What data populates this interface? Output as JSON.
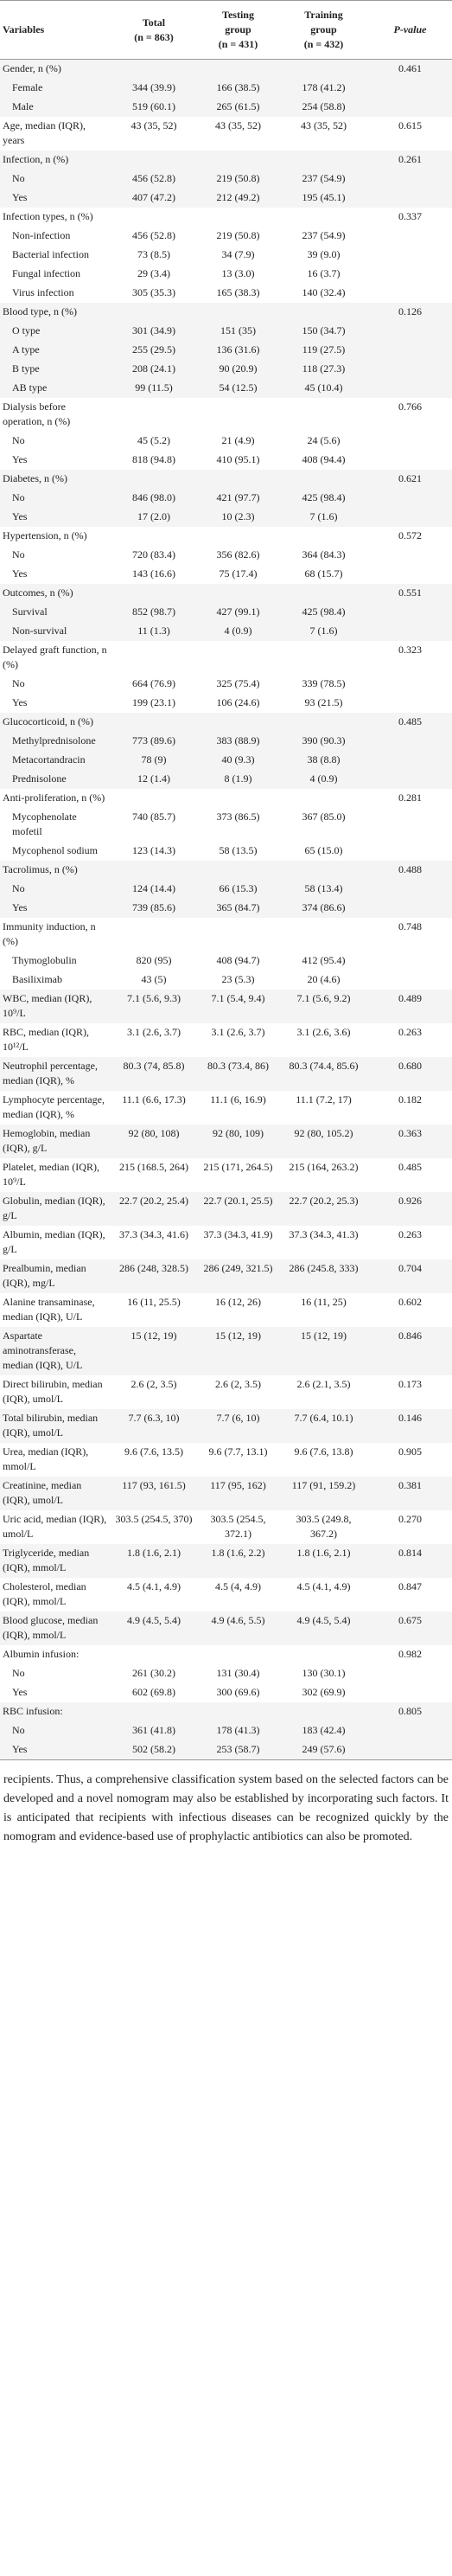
{
  "table": {
    "headers": [
      [
        "Variables"
      ],
      [
        "Total",
        "(n = 863)"
      ],
      [
        "Testing",
        "group",
        "(n = 431)"
      ],
      [
        "Training",
        "group",
        "(n = 432)"
      ],
      [
        "P-value"
      ]
    ],
    "rows": [
      [
        "Gender, n (%)",
        null,
        null,
        null,
        "0.461"
      ],
      [
        "Female",
        "344 (39.9)",
        "166 (38.5)",
        "178 (41.2)",
        null
      ],
      [
        "Male",
        "519 (60.1)",
        "265 (61.5)",
        "254 (58.8)",
        null
      ],
      [
        "Age, median (IQR), years",
        "43 (35, 52)",
        "43 (35, 52)",
        "43 (35, 52)",
        "0.615"
      ],
      [
        "Infection, n (%)",
        null,
        null,
        null,
        "0.261"
      ],
      [
        "No",
        "456 (52.8)",
        "219 (50.8)",
        "237 (54.9)",
        null
      ],
      [
        "Yes",
        "407 (47.2)",
        "212 (49.2)",
        "195 (45.1)",
        null
      ],
      [
        "Infection types, n (%)",
        null,
        null,
        null,
        "0.337"
      ],
      [
        "Non-infection",
        "456 (52.8)",
        "219 (50.8)",
        "237 (54.9)",
        null
      ],
      [
        "Bacterial infection",
        "73 (8.5)",
        "34 (7.9)",
        "39 (9.0)",
        null
      ],
      [
        "Fungal infection",
        "29 (3.4)",
        "13 (3.0)",
        "16 (3.7)",
        null
      ],
      [
        "Virus infection",
        "305 (35.3)",
        "165 (38.3)",
        "140 (32.4)",
        null
      ],
      [
        "Blood type, n (%)",
        null,
        null,
        null,
        "0.126"
      ],
      [
        "O type",
        "301 (34.9)",
        "151 (35)",
        "150 (34.7)",
        null
      ],
      [
        "A type",
        "255 (29.5)",
        "136 (31.6)",
        "119 (27.5)",
        null
      ],
      [
        "B type",
        "208 (24.1)",
        "90 (20.9)",
        "118 (27.3)",
        null
      ],
      [
        "AB type",
        "99 (11.5)",
        "54 (12.5)",
        "45 (10.4)",
        null
      ],
      [
        "Dialysis before operation, n (%)",
        null,
        null,
        null,
        "0.766"
      ],
      [
        "No",
        "45 (5.2)",
        "21 (4.9)",
        "24 (5.6)",
        null
      ],
      [
        "Yes",
        "818 (94.8)",
        "410 (95.1)",
        "408 (94.4)",
        null
      ],
      [
        "Diabetes, n (%)",
        null,
        null,
        null,
        "0.621"
      ],
      [
        "No",
        "846 (98.0)",
        "421 (97.7)",
        "425 (98.4)",
        null
      ],
      [
        "Yes",
        "17 (2.0)",
        "10 (2.3)",
        "7 (1.6)",
        null
      ],
      [
        "Hypertension, n (%)",
        null,
        null,
        null,
        "0.572"
      ],
      [
        "No",
        "720 (83.4)",
        "356 (82.6)",
        "364 (84.3)",
        null
      ],
      [
        "Yes",
        "143 (16.6)",
        "75 (17.4)",
        "68 (15.7)",
        null
      ],
      [
        "Outcomes, n (%)",
        null,
        null,
        null,
        "0.551"
      ],
      [
        "Survival",
        "852 (98.7)",
        "427 (99.1)",
        "425 (98.4)",
        null
      ],
      [
        "Non-survival",
        "11 (1.3)",
        "4 (0.9)",
        "7 (1.6)",
        null
      ],
      [
        "Delayed graft function, n (%)",
        null,
        null,
        null,
        "0.323"
      ],
      [
        "No",
        "664 (76.9)",
        "325 (75.4)",
        "339 (78.5)",
        null
      ],
      [
        "Yes",
        "199 (23.1)",
        "106 (24.6)",
        "93 (21.5)",
        null
      ],
      [
        "Glucocorticoid, n (%)",
        null,
        null,
        null,
        "0.485"
      ],
      [
        "Methylprednisolone",
        "773 (89.6)",
        "383 (88.9)",
        "390 (90.3)",
        null
      ],
      [
        "Metacortandracin",
        "78 (9)",
        "40 (9.3)",
        "38 (8.8)",
        null
      ],
      [
        "Prednisolone",
        "12 (1.4)",
        "8 (1.9)",
        "4 (0.9)",
        null
      ],
      [
        "Anti-proliferation, n (%)",
        null,
        null,
        null,
        "0.281"
      ],
      [
        "Mycophenolate mofetil",
        "740 (85.7)",
        "373 (86.5)",
        "367 (85.0)",
        null
      ],
      [
        "Mycophenol sodium",
        "123 (14.3)",
        "58 (13.5)",
        "65 (15.0)",
        null
      ],
      [
        "Tacrolimus, n (%)",
        null,
        null,
        null,
        "0.488"
      ],
      [
        "No",
        "124 (14.4)",
        "66 (15.3)",
        "58 (13.4)",
        null
      ],
      [
        "Yes",
        "739 (85.6)",
        "365 (84.7)",
        "374 (86.6)",
        null
      ],
      [
        "Immunity induction, n (%)",
        null,
        null,
        null,
        "0.748"
      ],
      [
        "Thymoglobulin",
        "820 (95)",
        "408 (94.7)",
        "412 (95.4)",
        null
      ],
      [
        "Basiliximab",
        "43 (5)",
        "23 (5.3)",
        "20 (4.6)",
        null
      ],
      [
        "WBC, median (IQR), 10⁹/L",
        "7.1 (5.6, 9.3)",
        "7.1 (5.4, 9.4)",
        "7.1 (5.6, 9.2)",
        "0.489"
      ],
      [
        "RBC, median (IQR), 10¹²/L",
        "3.1 (2.6, 3.7)",
        "3.1 (2.6, 3.7)",
        "3.1 (2.6, 3.6)",
        "0.263"
      ],
      [
        "Neutrophil percentage, median (IQR), %",
        "80.3 (74, 85.8)",
        "80.3 (73.4, 86)",
        "80.3 (74.4, 85.6)",
        "0.680"
      ],
      [
        "Lymphocyte percentage, median (IQR), %",
        "11.1 (6.6, 17.3)",
        "11.1 (6, 16.9)",
        "11.1 (7.2, 17)",
        "0.182"
      ],
      [
        "Hemoglobin, median (IQR), g/L",
        "92 (80, 108)",
        "92 (80, 109)",
        "92 (80, 105.2)",
        "0.363"
      ],
      [
        "Platelet, median (IQR), 10⁹/L",
        "215 (168.5, 264)",
        "215 (171, 264.5)",
        "215 (164, 263.2)",
        "0.485"
      ],
      [
        "Globulin, median (IQR), g/L",
        "22.7 (20.2, 25.4)",
        "22.7 (20.1, 25.5)",
        "22.7 (20.2, 25.3)",
        "0.926"
      ],
      [
        "Albumin, median (IQR), g/L",
        "37.3 (34.3, 41.6)",
        "37.3 (34.3, 41.9)",
        "37.3 (34.3, 41.3)",
        "0.263"
      ],
      [
        "Prealbumin, median (IQR), mg/L",
        "286 (248, 328.5)",
        "286 (249, 321.5)",
        "286 (245.8, 333)",
        "0.704"
      ],
      [
        "Alanine transaminase, median (IQR), U/L",
        "16 (11, 25.5)",
        "16 (12, 26)",
        "16 (11, 25)",
        "0.602"
      ],
      [
        "Aspartate aminotransferase, median (IQR), U/L",
        "15 (12, 19)",
        "15 (12, 19)",
        "15 (12, 19)",
        "0.846"
      ],
      [
        "Direct bilirubin, median (IQR), umol/L",
        "2.6 (2, 3.5)",
        "2.6 (2, 3.5)",
        "2.6 (2.1, 3.5)",
        "0.173"
      ],
      [
        "Total bilirubin, median (IQR), umol/L",
        "7.7 (6.3, 10)",
        "7.7 (6, 10)",
        "7.7 (6.4, 10.1)",
        "0.146"
      ],
      [
        "Urea, median (IQR), mmol/L",
        "9.6 (7.6, 13.5)",
        "9.6 (7.7, 13.1)",
        "9.6 (7.6, 13.8)",
        "0.905"
      ],
      [
        "Creatinine, median (IQR), umol/L",
        "117 (93, 161.5)",
        "117 (95, 162)",
        "117 (91, 159.2)",
        "0.381"
      ],
      [
        "Uric acid, median (IQR), umol/L",
        "303.5 (254.5, 370)",
        "303.5 (254.5, 372.1)",
        "303.5 (249.8, 367.2)",
        "0.270"
      ],
      [
        "Triglyceride, median (IQR), mmol/L",
        "1.8 (1.6, 2.1)",
        "1.8 (1.6, 2.2)",
        "1.8 (1.6, 2.1)",
        "0.814"
      ],
      [
        "Cholesterol, median (IQR), mmol/L",
        "4.5 (4.1, 4.9)",
        "4.5 (4, 4.9)",
        "4.5 (4.1, 4.9)",
        "0.847"
      ],
      [
        "Blood glucose, median (IQR), mmol/L",
        "4.9 (4.5, 5.4)",
        "4.9 (4.6, 5.5)",
        "4.9 (4.5, 5.4)",
        "0.675"
      ],
      [
        "Albumin infusion:",
        null,
        null,
        null,
        "0.982"
      ],
      [
        "No",
        "261 (30.2)",
        "131 (30.4)",
        "130 (30.1)",
        null
      ],
      [
        "Yes",
        "602 (69.8)",
        "300 (69.6)",
        "302 (69.9)",
        null
      ],
      [
        "RBC infusion:",
        null,
        null,
        null,
        "0.805"
      ],
      [
        "No",
        "361 (41.8)",
        "178 (41.3)",
        "183 (42.4)",
        null
      ],
      [
        "Yes",
        "502 (58.2)",
        "253 (58.7)",
        "249 (57.6)",
        null
      ]
    ]
  },
  "paragraph": "recipients. Thus, a comprehensive classification system based on the selected factors can be developed and a novel nomogram may also be established by incorporating such factors. It is anticipated that recipients with infectious diseases can be recognized quickly by the nomogram and evidence-based use of prophylactic antibiotics can also be promoted."
}
